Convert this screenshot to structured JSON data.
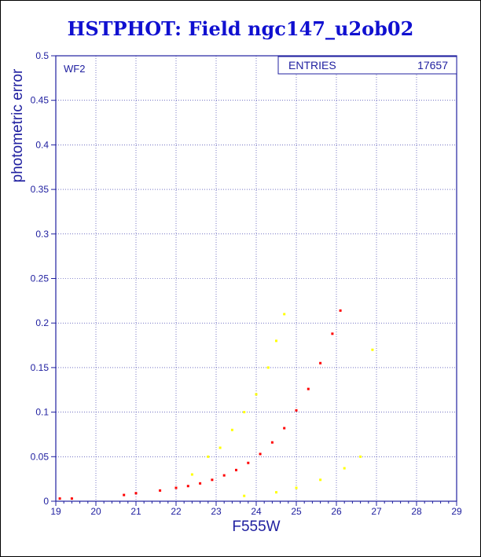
{
  "chart": {
    "title": "HSTPHOT: Field ngc147_u2ob02",
    "panel_label": "WF2",
    "stats_label": "ENTRIES",
    "stats_value": "17657"
  },
  "chart_data": {
    "type": "scatter",
    "title": "HSTPHOT: Field ngc147_u2ob02",
    "xlabel": "F555W",
    "ylabel": "photometric error",
    "xlim": [
      19,
      29
    ],
    "ylim": [
      0,
      0.5
    ],
    "x_ticks": [
      "19",
      "20",
      "21",
      "22",
      "23",
      "24",
      "25",
      "26",
      "27",
      "28",
      "29"
    ],
    "y_ticks": [
      "0",
      "0.05",
      "0.1",
      "0.15",
      "0.2",
      "0.25",
      "0.3",
      "0.35",
      "0.4",
      "0.45",
      "0.5"
    ],
    "grid": true,
    "legend": "none",
    "entries": 17657,
    "series": [
      {
        "color": "#ff0000",
        "points": [
          [
            19.1,
            0.003
          ],
          [
            19.4,
            0.003
          ],
          [
            20.7,
            0.007
          ],
          [
            21.0,
            0.009
          ],
          [
            21.6,
            0.012
          ],
          [
            22.0,
            0.015
          ],
          [
            22.3,
            0.017
          ],
          [
            22.6,
            0.02
          ],
          [
            22.9,
            0.024
          ],
          [
            23.2,
            0.029
          ],
          [
            23.5,
            0.035
          ],
          [
            23.8,
            0.043
          ],
          [
            24.1,
            0.053
          ],
          [
            24.4,
            0.066
          ],
          [
            24.7,
            0.082
          ],
          [
            25.0,
            0.102
          ],
          [
            25.3,
            0.126
          ],
          [
            25.6,
            0.155
          ],
          [
            25.9,
            0.188
          ],
          [
            26.1,
            0.214
          ]
        ]
      },
      {
        "color": "#ffff00",
        "points": [
          [
            22.4,
            0.03
          ],
          [
            22.8,
            0.05
          ],
          [
            23.1,
            0.06
          ],
          [
            23.4,
            0.08
          ],
          [
            23.7,
            0.1
          ],
          [
            24.0,
            0.12
          ],
          [
            24.3,
            0.15
          ],
          [
            24.5,
            0.18
          ],
          [
            24.7,
            0.21
          ],
          [
            23.7,
            0.006
          ],
          [
            24.5,
            0.01
          ],
          [
            25.0,
            0.015
          ],
          [
            25.6,
            0.024
          ],
          [
            26.2,
            0.037
          ],
          [
            26.6,
            0.05
          ],
          [
            26.9,
            0.17
          ]
        ]
      }
    ]
  }
}
